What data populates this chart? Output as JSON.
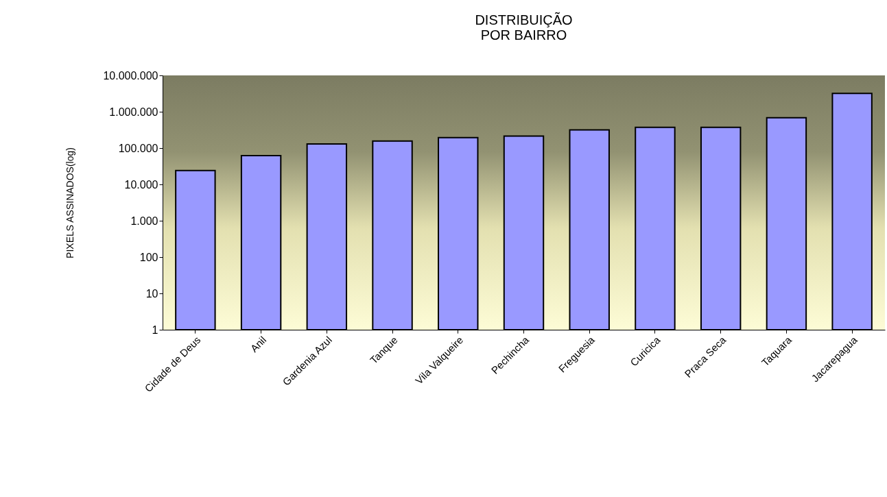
{
  "chart_data": {
    "type": "bar",
    "title": "DISTRIBUIÇÃO\nPOR BAIRRO",
    "ylabel": "PIXELS ASSINADOS(log)",
    "categories": [
      "Cidade de Deus",
      "Anil",
      "Gardenia Azul",
      "Tanque",
      "Vila Valqueire",
      "Pechincha",
      "Freguesia",
      "Curicica",
      "Praca Seca",
      "Taquara",
      "Jacarepagua"
    ],
    "values": [
      24000,
      62000,
      130000,
      156000,
      195000,
      213000,
      315000,
      372000,
      372000,
      687000,
      3200000
    ],
    "color": "#9999ff",
    "log": true,
    "ylim": [
      1,
      10000000
    ],
    "yticks": [
      1,
      10,
      100,
      {
        "value": 1000,
        "label": "1.000"
      },
      {
        "value": 10000,
        "label": "10.000"
      },
      {
        "value": 100000,
        "label": "100.000"
      },
      {
        "value": 1000000,
        "label": "1.000.000"
      },
      {
        "value": 10000000,
        "label": "10.000.000"
      }
    ],
    "grid": false
  }
}
